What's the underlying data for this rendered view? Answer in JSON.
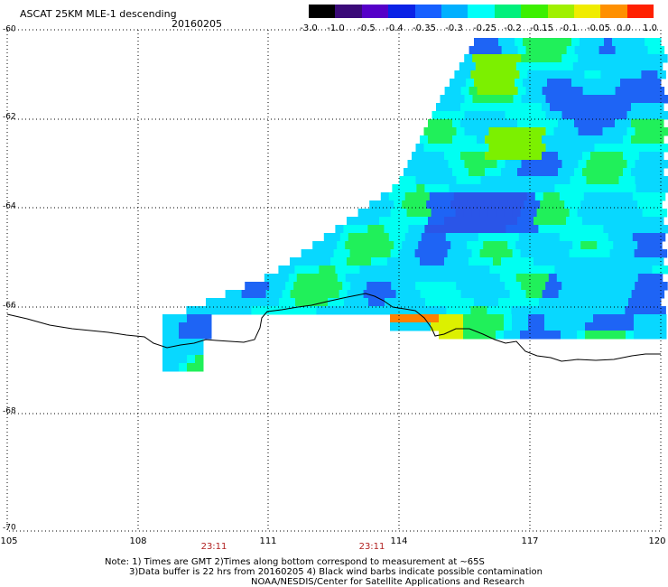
{
  "header": {
    "title": "ASCAT 25KM MLE-1 descending",
    "date": "20160205"
  },
  "colorbar": {
    "labels": [
      "-3.0",
      "-1.0",
      "-0.5",
      "-0.4",
      "-0.35",
      "-0.3",
      "-0.25",
      "-0.2",
      "-0.15",
      "-0.1",
      "-0.05",
      "0.0",
      "1.0"
    ],
    "colors": [
      "#000000",
      "#3a0a78",
      "#5500c8",
      "#0b22e6",
      "#1760ff",
      "#00b0ff",
      "#00fff8",
      "#00f07c",
      "#3cf000",
      "#a0f000",
      "#f0ec00",
      "#ff9000",
      "#ff2000"
    ]
  },
  "axes": {
    "lat_labels": [
      "-60",
      "-62",
      "-64",
      "-66",
      "-68",
      "-70"
    ],
    "lon_labels": [
      "105",
      "108",
      "111",
      "114",
      "117",
      "120"
    ]
  },
  "time_labels": [
    "23:11",
    "23:11"
  ],
  "footer": {
    "line1": "Note: 1) Times are GMT 2)Times along bottom correspond to measurement at ~65S",
    "line2": "3)Data buffer is 22 hrs from 20160205 4) Black wind barbs indicate possible contamination",
    "line3": "NOAA/NESDIS/Center for Satellite Applications and Research"
  },
  "style": {
    "coast_color": "#000000",
    "grid_color": "#000000"
  }
}
